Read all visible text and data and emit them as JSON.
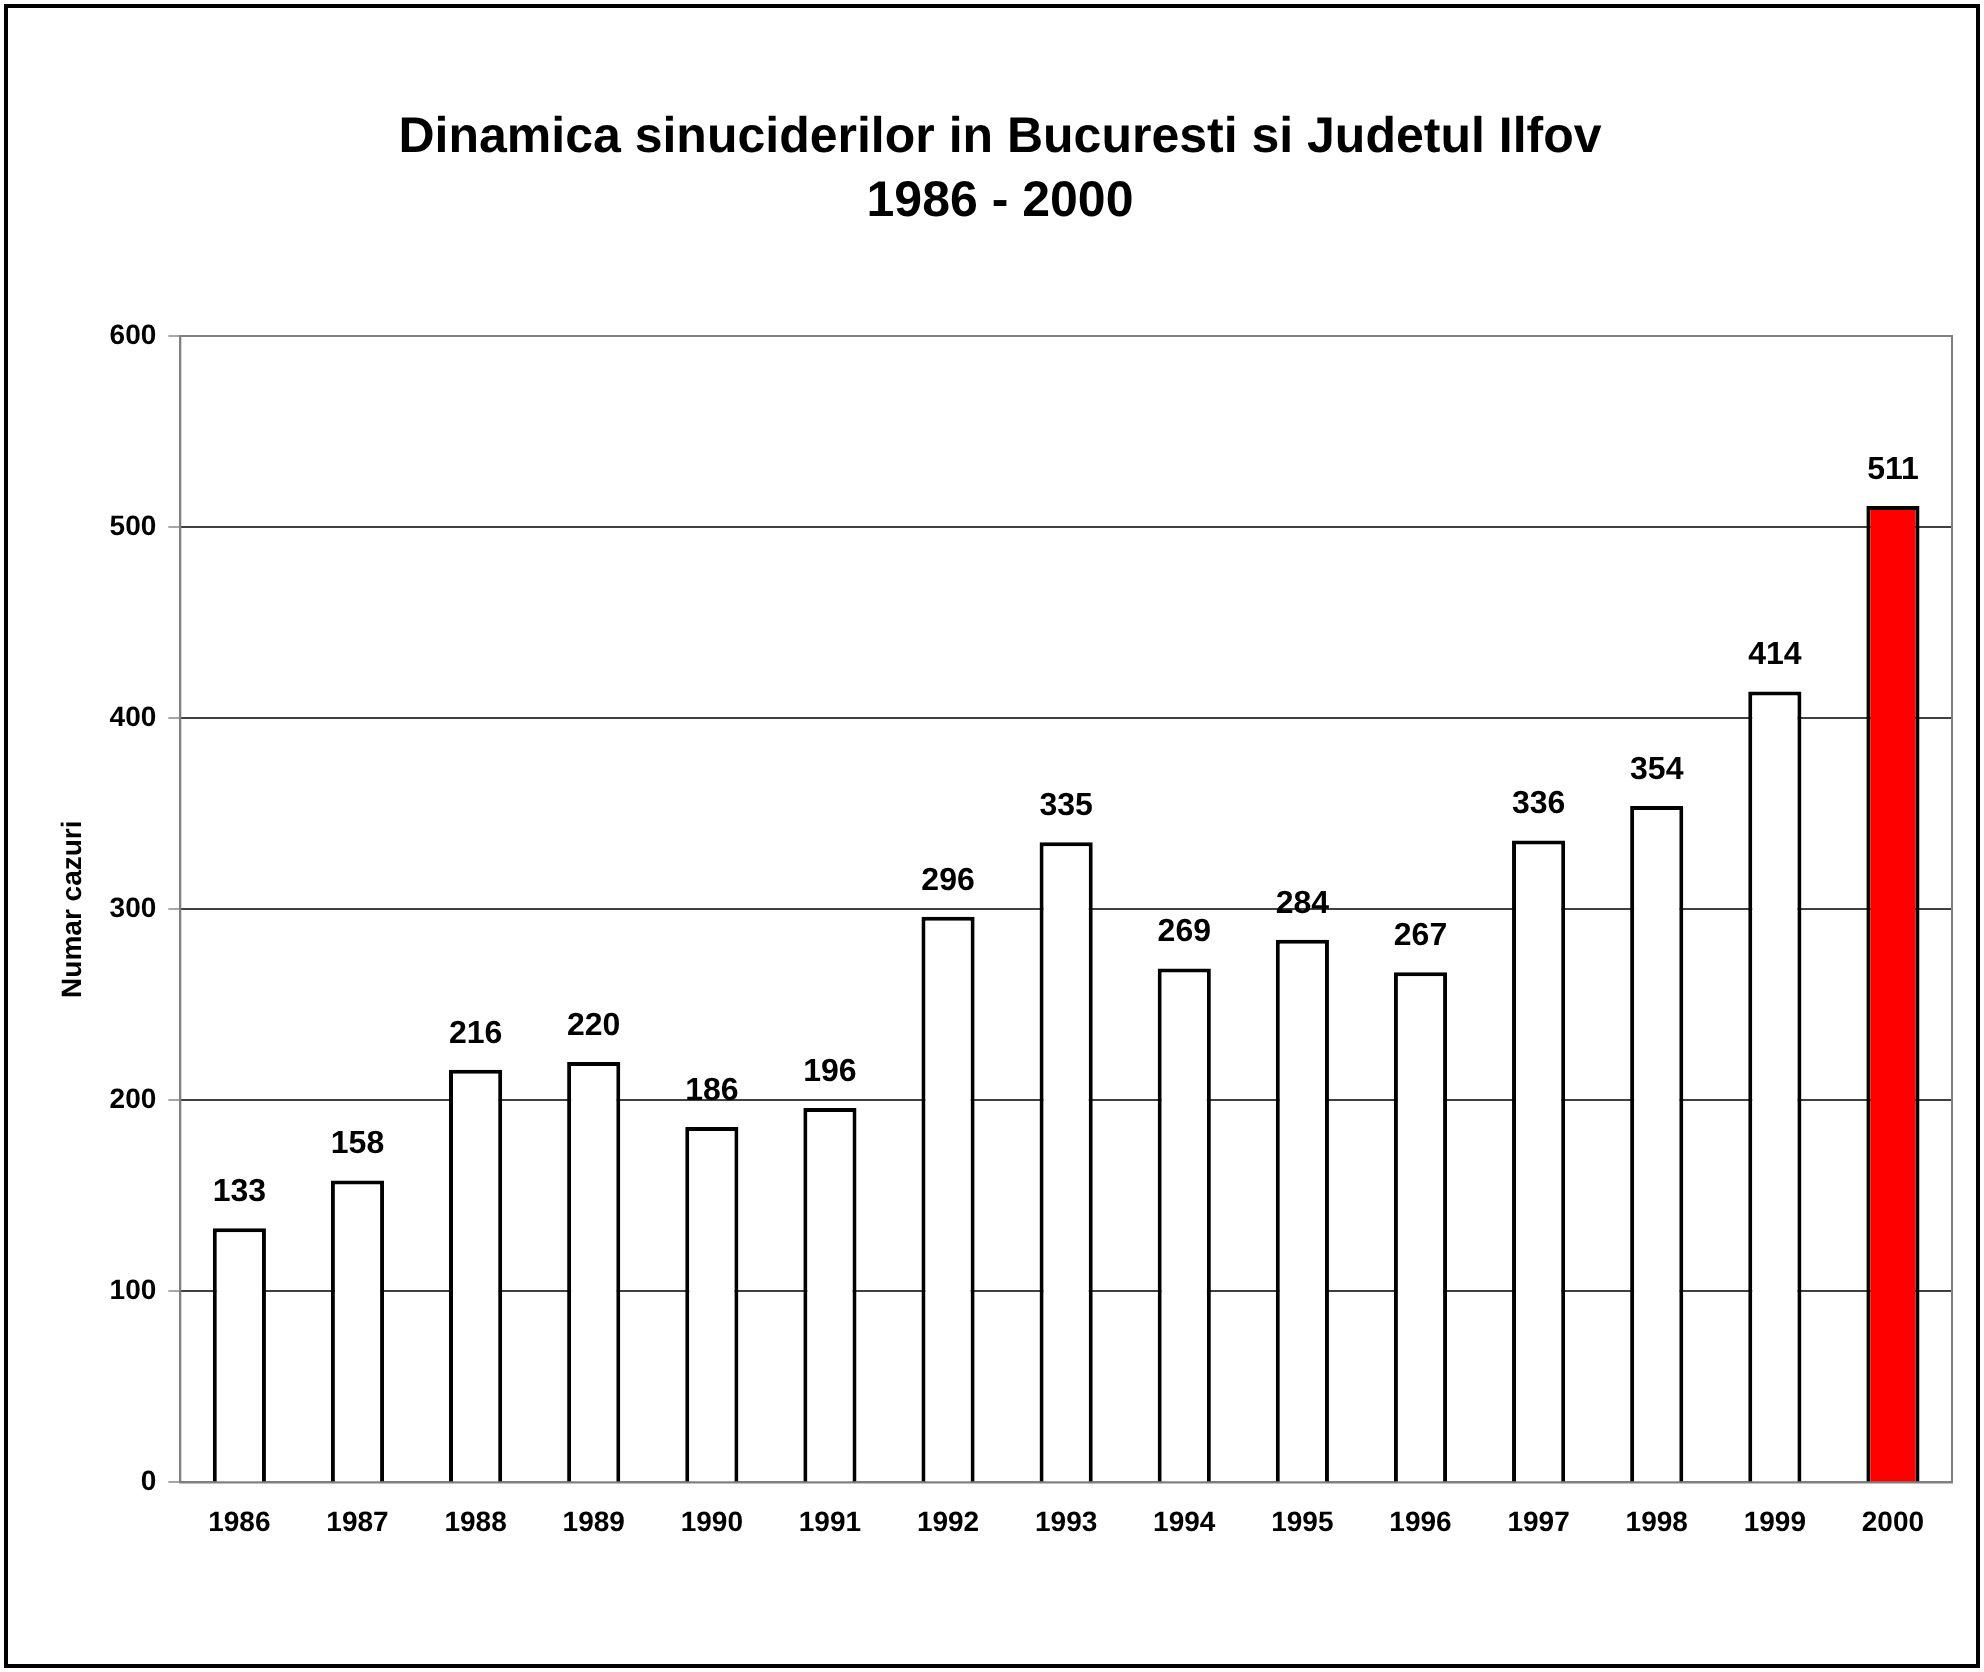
{
  "chart_data": {
    "type": "bar",
    "title": "Dinamica sinuciderilor in Bucuresti si Judetul Ilfov",
    "subtitle": "1986 - 2000",
    "ylabel": "Numar cazuri",
    "categories": [
      "1986",
      "1987",
      "1988",
      "1989",
      "1990",
      "1991",
      "1992",
      "1993",
      "1994",
      "1995",
      "1996",
      "1997",
      "1998",
      "1999",
      "2000"
    ],
    "values": [
      133,
      158,
      216,
      220,
      186,
      196,
      296,
      335,
      269,
      284,
      267,
      336,
      354,
      414,
      511
    ],
    "colors": [
      "#ffffff",
      "#ffffff",
      "#ffffff",
      "#ffffff",
      "#ffffff",
      "#ffffff",
      "#ffffff",
      "#ffffff",
      "#ffffff",
      "#ffffff",
      "#ffffff",
      "#ffffff",
      "#ffffff",
      "#ffffff",
      "#ff0000"
    ],
    "ylim": [
      0,
      600
    ],
    "yticks": [
      0,
      100,
      200,
      300,
      400,
      500,
      600
    ],
    "grid": "y",
    "data_labels": true
  }
}
